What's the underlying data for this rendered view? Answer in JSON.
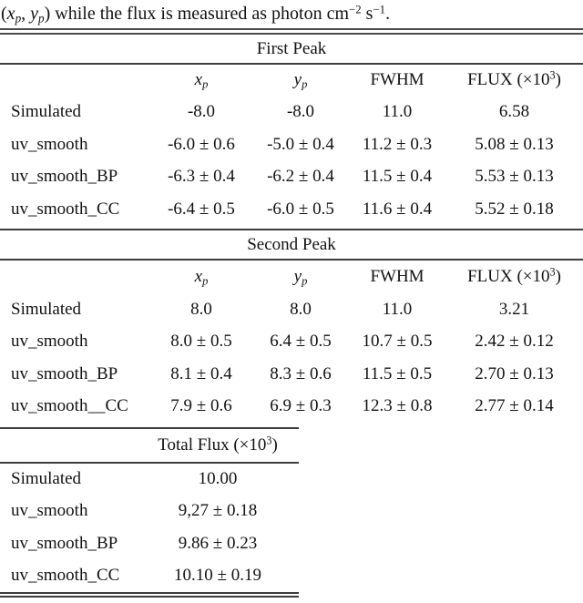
{
  "colors": {
    "background": "#ffffff",
    "text": "#121212",
    "rule": "#3d3d3d"
  },
  "caption": {
    "open_paren": "(",
    "x_var": "x",
    "x_sub": "p",
    "comma": ", ",
    "y_var": "y",
    "y_sub": "p",
    "middle": ") while the flux is measured as photon cm",
    "cm_sup": "−2",
    "s_unit": " s",
    "s_sup": "−1",
    "period": "."
  },
  "column_header": {
    "x_var": "x",
    "y_var": "y",
    "p_sub": "p",
    "fwhm": "FWHM",
    "flux_pre": "FLUX (×10",
    "flux_sup": "3",
    "flux_post": ")"
  },
  "first_peak": {
    "title": "First Peak",
    "rows": [
      {
        "label": "Simulated",
        "xp": "-8.0",
        "yp": "-8.0",
        "fwhm": "11.0",
        "flux": "6.58"
      },
      {
        "label": "uv_smooth",
        "xp": "-6.0 ± 0.6",
        "yp": "-5.0 ± 0.4",
        "fwhm": "11.2 ± 0.3",
        "flux": "5.08 ± 0.13"
      },
      {
        "label": "uv_smooth_BP",
        "xp": "-6.3 ± 0.4",
        "yp": "-6.2 ± 0.4",
        "fwhm": "11.5 ± 0.4",
        "flux": "5.53 ± 0.13"
      },
      {
        "label": "uv_smooth_CC",
        "xp": "-6.4 ± 0.5",
        "yp": "-6.0 ± 0.5",
        "fwhm": "11.6 ± 0.4",
        "flux": "5.52 ± 0.18"
      }
    ]
  },
  "second_peak": {
    "title": "Second Peak",
    "rows": [
      {
        "label": "Simulated",
        "xp": "8.0",
        "yp": "8.0",
        "fwhm": "11.0",
        "flux": "3.21"
      },
      {
        "label": "uv_smooth",
        "xp": "8.0 ± 0.5",
        "yp": "6.4 ± 0.5",
        "fwhm": "10.7 ± 0.5",
        "flux": "2.42 ± 0.12"
      },
      {
        "label": "uv_smooth_BP",
        "xp": "8.1 ± 0.4",
        "yp": "8.3 ± 0.6",
        "fwhm": "11.5 ± 0.5",
        "flux": "2.70 ± 0.13"
      },
      {
        "label": "uv_smooth__CC",
        "xp": "7.9 ± 0.6",
        "yp": "6.9 ± 0.3",
        "fwhm": "12.3 ± 0.8",
        "flux": "2.77 ± 0.14"
      }
    ]
  },
  "total_flux": {
    "title_pre": "Total Flux (×10",
    "title_sup": "3",
    "title_post": ")",
    "rows": [
      {
        "label": "Simulated",
        "value": "10.00"
      },
      {
        "label": "uv_smooth",
        "value": "9,27 ± 0.18"
      },
      {
        "label": "uv_smooth_BP",
        "value": "9.86 ± 0.23"
      },
      {
        "label": "uv_smooth_CC",
        "value": "10.10 ± 0.19"
      }
    ]
  }
}
